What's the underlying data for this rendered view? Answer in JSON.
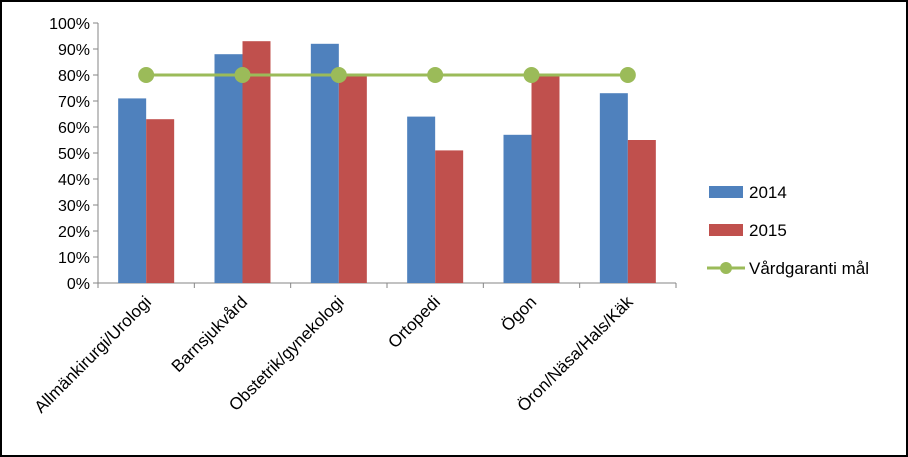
{
  "chart_data": {
    "type": "bar",
    "categories": [
      "Allmänkirurgi/Urologi",
      "Barnsjukvård",
      "Obstetrik/gynekologi",
      "Ortopedi",
      "Ögon",
      "Öron/Näsa/Hals/Käk"
    ],
    "series": [
      {
        "name": "2014",
        "type": "bar",
        "color": "#4f81bd",
        "values": [
          71,
          88,
          92,
          64,
          57,
          73
        ]
      },
      {
        "name": "2015",
        "type": "bar",
        "color": "#c0504d",
        "values": [
          63,
          93,
          80,
          51,
          80,
          55
        ]
      },
      {
        "name": "Vårdgaranti mål",
        "type": "line",
        "color": "#9bbb59",
        "values": [
          80,
          80,
          80,
          80,
          80,
          80
        ]
      }
    ],
    "y_ticks": [
      "0%",
      "10%",
      "20%",
      "30%",
      "40%",
      "50%",
      "60%",
      "70%",
      "80%",
      "90%",
      "100%"
    ],
    "ylim": [
      0,
      100
    ],
    "grid": false,
    "legend_position": "right"
  }
}
